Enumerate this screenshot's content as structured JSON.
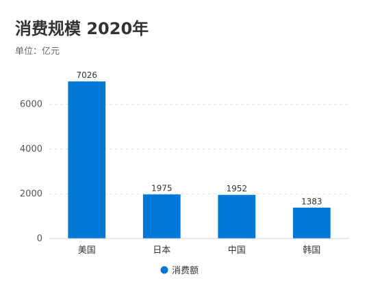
{
  "title": "消费规模 2020年",
  "subtitle": "单位：亿元",
  "colors": {
    "bar": "#0078d7",
    "grid": "#dddddd",
    "axis": "#cccccc"
  },
  "chart_data": {
    "type": "bar",
    "title": "消费规模 2020年",
    "subtitle": "单位：亿元",
    "categories": [
      "美国",
      "日本",
      "中国",
      "韩国"
    ],
    "series": [
      {
        "name": "消费额",
        "values": [
          7026,
          1975,
          1952,
          1383
        ]
      }
    ],
    "ylim": [
      0,
      7000
    ],
    "yticks": [
      0,
      2000,
      4000,
      6000
    ],
    "grid": true,
    "legend": "bottom-center"
  }
}
